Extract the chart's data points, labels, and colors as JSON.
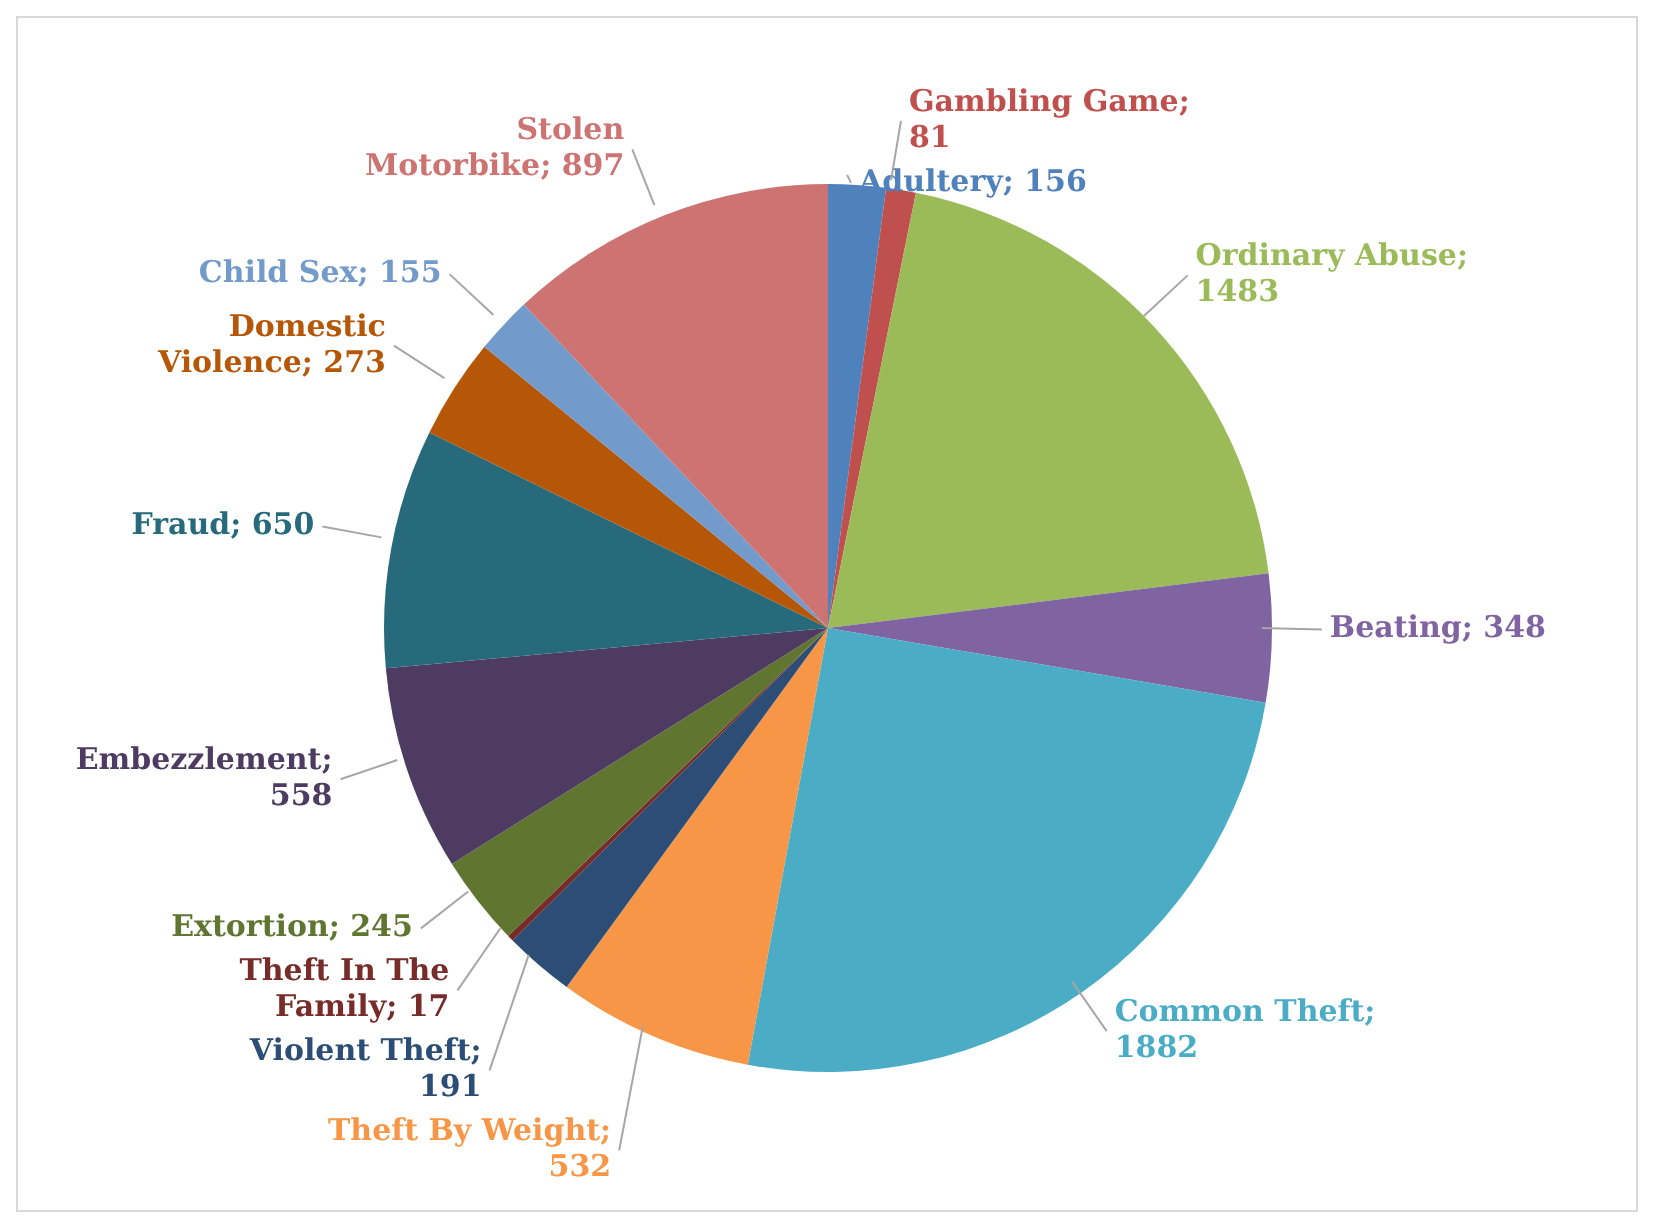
{
  "chart_data": {
    "type": "pie",
    "categories": [
      "Adultery",
      "Gambling Game",
      "Ordinary Abuse",
      "Beating",
      "Common Theft",
      "Theft By Weight",
      "Violent Theft",
      "Theft In The Family",
      "Extortion",
      "Embezzlement",
      "Fraud",
      "Domestic Violence",
      "Child Sex",
      "Stolen Motorbike"
    ],
    "values": [
      156,
      81,
      1483,
      348,
      1882,
      532,
      191,
      17,
      245,
      558,
      650,
      273,
      155,
      897
    ],
    "colors": [
      "#4f81bd",
      "#c0504d",
      "#9bbb59",
      "#8064a2",
      "#4bacc6",
      "#f79646",
      "#2c4d75",
      "#772c2a",
      "#5f7530",
      "#4d3b62",
      "#276a7c",
      "#b65708",
      "#729aca",
      "#cd7371"
    ],
    "value_labels": [
      "; 156",
      "; 81",
      "; 1483",
      "; 348",
      "; 1882",
      "; 532",
      "; 191",
      "; 17",
      "; 245",
      "; 558",
      "; 650",
      "; 273",
      "; 155",
      "; 897"
    ]
  }
}
